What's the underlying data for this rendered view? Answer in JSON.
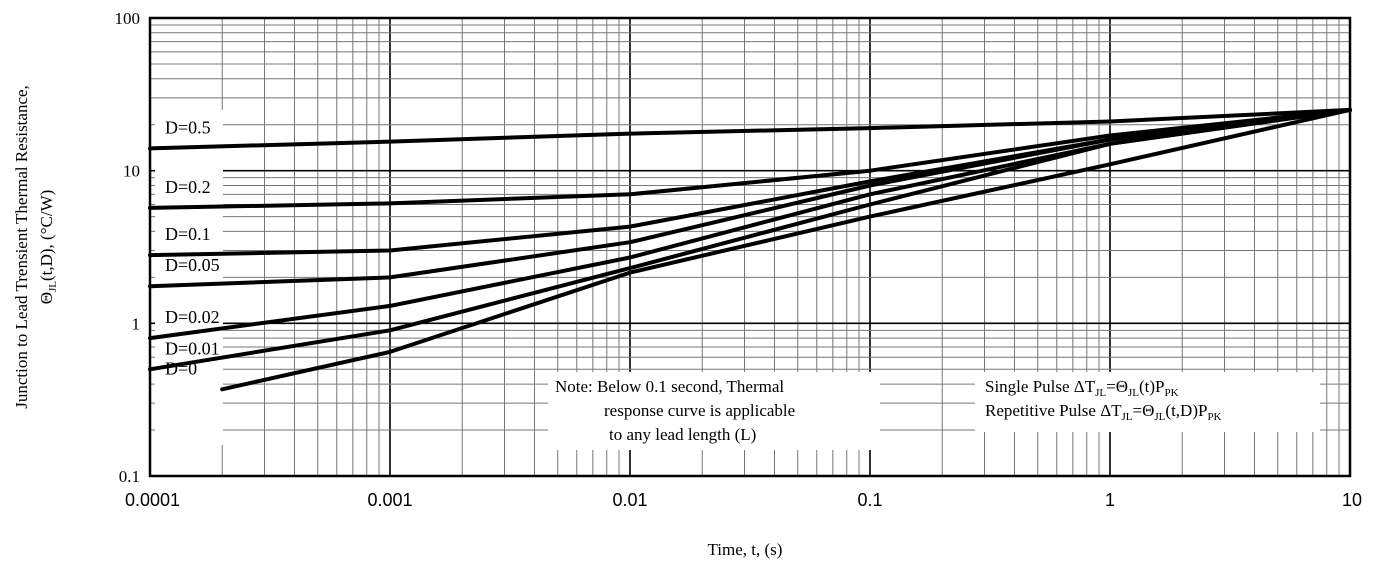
{
  "chart_data": {
    "type": "line",
    "xscale": "log",
    "yscale": "log",
    "xlim": [
      0.0001,
      10
    ],
    "ylim": [
      0.1,
      100
    ],
    "grid": true,
    "xlabel": "Time, t, (s)",
    "ylabel_line1": "Junction to Lead Trensient Thermal Resistance,",
    "ylabel_line2_prefix": "Θ",
    "ylabel_line2_sub": "JL",
    "ylabel_line2_rest": "(t,D),  (°C/W)",
    "x_tick_labels": [
      "0.0001",
      "0.001",
      "0.01",
      "0.1",
      "1",
      "10"
    ],
    "x_tick_values": [
      0.0001,
      0.001,
      0.01,
      0.1,
      1,
      10
    ],
    "y_tick_labels": [
      "0.1",
      "1",
      "10",
      "100"
    ],
    "y_tick_values": [
      0.1,
      1,
      10,
      100
    ],
    "series": [
      {
        "name": "D=0.5",
        "x": [
          0.0001,
          0.001,
          0.01,
          0.1,
          1,
          10
        ],
        "y": [
          14,
          15.5,
          17.5,
          19,
          21,
          25
        ]
      },
      {
        "name": "D=0.2",
        "x": [
          0.0001,
          0.001,
          0.01,
          0.1,
          1,
          10
        ],
        "y": [
          5.7,
          6.1,
          7,
          10,
          17,
          25
        ]
      },
      {
        "name": "D=0.1",
        "x": [
          0.0001,
          0.001,
          0.01,
          0.1,
          1,
          10
        ],
        "y": [
          2.8,
          3,
          4.3,
          8.5,
          16,
          25
        ]
      },
      {
        "name": "D=0.05",
        "x": [
          0.0001,
          0.001,
          0.01,
          0.1,
          1,
          10
        ],
        "y": [
          1.75,
          2,
          3.4,
          8,
          16,
          25
        ]
      },
      {
        "name": "D=0.02",
        "x": [
          0.0001,
          0.001,
          0.01,
          0.1,
          1,
          10
        ],
        "y": [
          0.8,
          1.3,
          2.7,
          7,
          15,
          25
        ]
      },
      {
        "name": "D=0.01",
        "x": [
          0.0001,
          0.001,
          0.01,
          0.1,
          1,
          10
        ],
        "y": [
          0.5,
          0.9,
          2.3,
          6,
          15,
          25
        ]
      },
      {
        "name": "D=0",
        "x": [
          0.0002,
          0.001,
          0.01,
          0.1,
          1,
          10
        ],
        "y": [
          0.37,
          0.65,
          2.15,
          5,
          11,
          25
        ]
      }
    ],
    "annotations": {
      "note_lines": [
        "Note: Below 0.1 second, Thermal",
        "response curve is applicable",
        "to any lead length (L)"
      ],
      "formula1_prefix": "Single Pulse ΔT",
      "formula1_sub1": "JL",
      "formula1_mid": "=Θ",
      "formula1_sub2": "JL",
      "formula1_mid2": "(t)P",
      "formula1_sub3": "PK",
      "formula2_prefix": "Repetitive Pulse ΔT",
      "formula2_sub1": "JL",
      "formula2_mid": "=Θ",
      "formula2_sub2": "JL",
      "formula2_mid2": "(t,D)P",
      "formula2_sub3": "PK"
    }
  }
}
